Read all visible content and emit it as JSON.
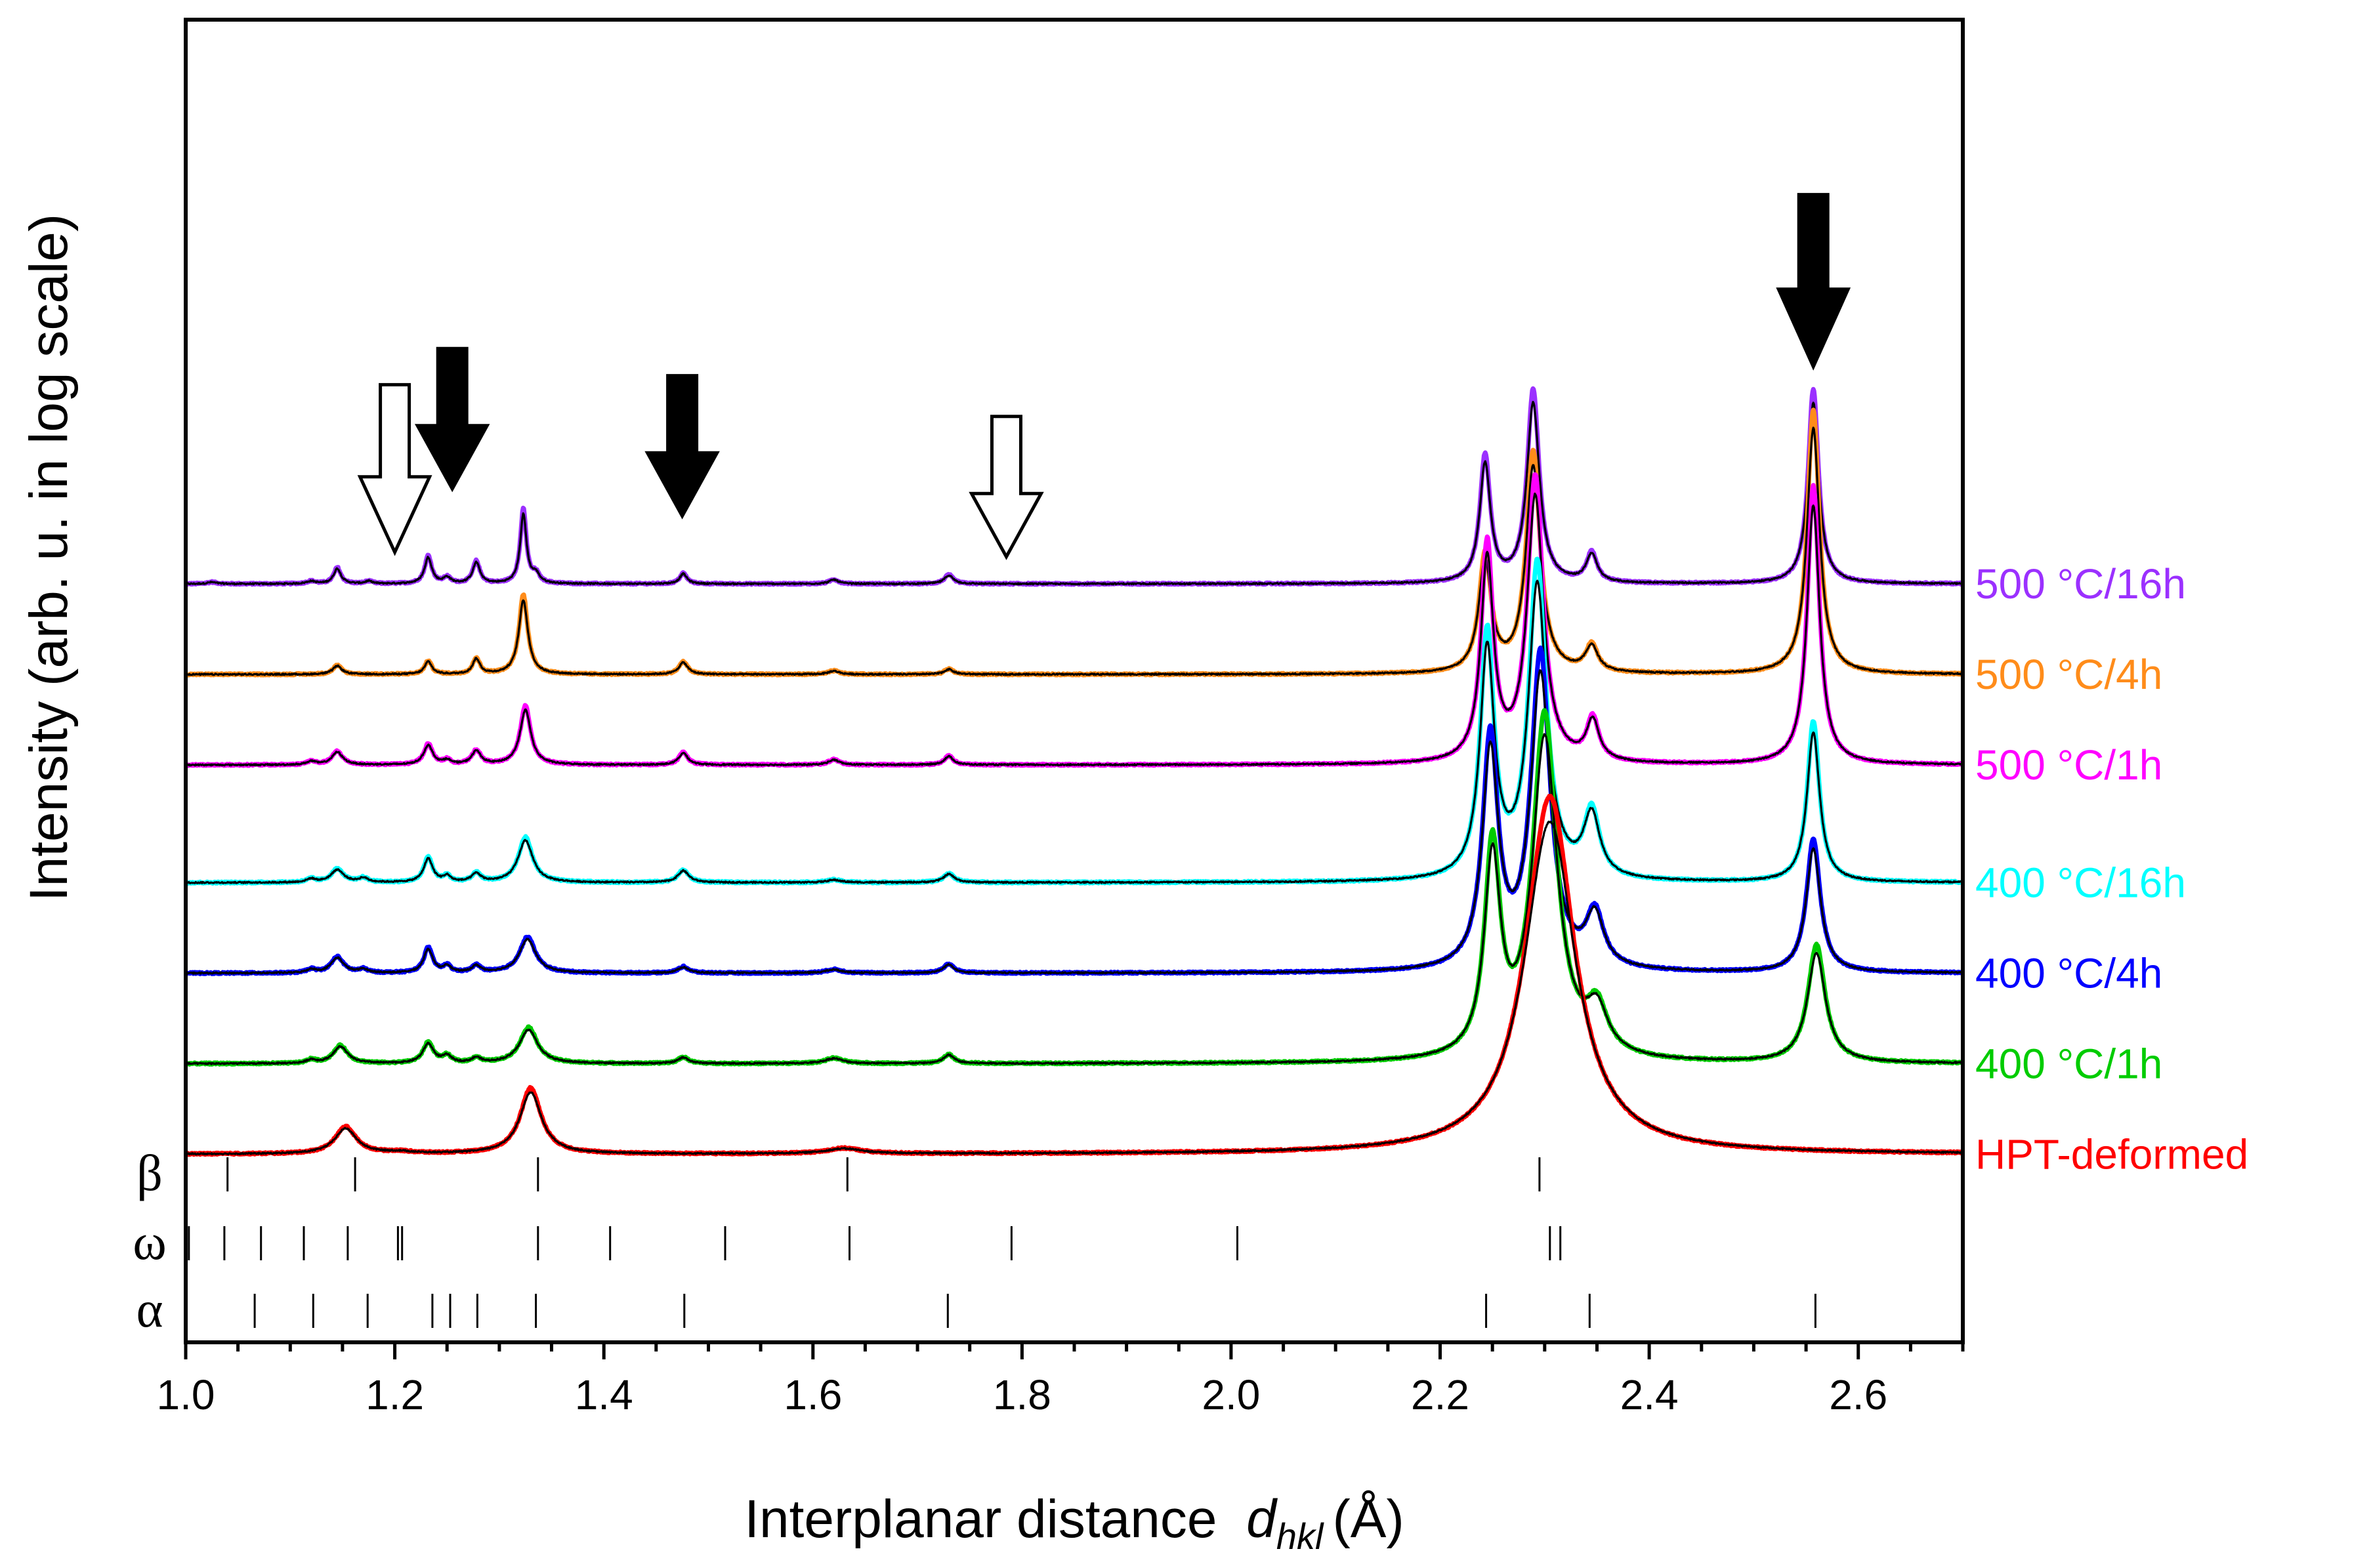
{
  "chart_data": {
    "type": "line",
    "title": "",
    "xlabel": "Interplanar distance",
    "xlabel_symbol": "d",
    "xlabel_subscript": "hkl",
    "xlabel_unit": "(Å)",
    "ylabel": "Intensity (arb. u. in log scale)",
    "xlim": [
      1.0,
      2.7
    ],
    "xticks": [
      "1.0",
      "1.2",
      "1.4",
      "1.6",
      "1.8",
      "2.0",
      "2.2",
      "2.4",
      "2.6"
    ],
    "xtick_values": [
      1.0,
      1.2,
      1.4,
      1.6,
      1.8,
      2.0,
      2.2,
      2.4,
      2.6
    ],
    "grid": false,
    "legend": "right-side labels next to each trace",
    "series": [
      {
        "name": "500 °C/16h",
        "color": "#9B30FF",
        "baseline": 6.0,
        "peaks": [
          [
            1.025,
            0.02,
            0.005
          ],
          [
            1.12,
            0.03,
            0.005
          ],
          [
            1.145,
            0.18,
            0.004
          ],
          [
            1.175,
            0.03,
            0.004
          ],
          [
            1.232,
            0.31,
            0.004
          ],
          [
            1.25,
            0.07,
            0.004
          ],
          [
            1.278,
            0.25,
            0.004
          ],
          [
            1.323,
            0.82,
            0.0035
          ],
          [
            1.335,
            0.1,
            0.004
          ],
          [
            1.476,
            0.12,
            0.004
          ],
          [
            1.62,
            0.05,
            0.005
          ],
          [
            1.73,
            0.1,
            0.005
          ],
          [
            2.243,
            1.4,
            0.006
          ],
          [
            2.289,
            2.13,
            0.007
          ],
          [
            2.345,
            0.33,
            0.006
          ],
          [
            2.557,
            2.15,
            0.006
          ]
        ]
      },
      {
        "name": "500 °C/4h",
        "color": "#FF8C1A",
        "baseline": 5.0,
        "peaks": [
          [
            1.145,
            0.1,
            0.005
          ],
          [
            1.232,
            0.15,
            0.004
          ],
          [
            1.278,
            0.18,
            0.004
          ],
          [
            1.323,
            0.88,
            0.005
          ],
          [
            1.476,
            0.14,
            0.005
          ],
          [
            1.62,
            0.04,
            0.006
          ],
          [
            1.73,
            0.06,
            0.005
          ],
          [
            2.243,
            1.3,
            0.007
          ],
          [
            2.289,
            2.45,
            0.008
          ],
          [
            2.345,
            0.3,
            0.007
          ],
          [
            2.557,
            2.92,
            0.007
          ]
        ]
      },
      {
        "name": "500 °C/1h",
        "color": "#FF00FF",
        "baseline": 4.0,
        "peaks": [
          [
            1.12,
            0.04,
            0.005
          ],
          [
            1.145,
            0.15,
            0.006
          ],
          [
            1.232,
            0.23,
            0.005
          ],
          [
            1.25,
            0.05,
            0.004
          ],
          [
            1.278,
            0.16,
            0.005
          ],
          [
            1.325,
            0.65,
            0.006
          ],
          [
            1.476,
            0.14,
            0.005
          ],
          [
            1.62,
            0.06,
            0.006
          ],
          [
            1.73,
            0.1,
            0.005
          ],
          [
            2.245,
            2.4,
            0.007
          ],
          [
            2.291,
            3.15,
            0.009
          ],
          [
            2.346,
            0.47,
            0.007
          ],
          [
            2.557,
            3.08,
            0.007
          ]
        ]
      },
      {
        "name": "400 °C/16h",
        "color": "#00FFFF",
        "baseline": 2.7,
        "peaks": [
          [
            1.12,
            0.04,
            0.005
          ],
          [
            1.145,
            0.15,
            0.007
          ],
          [
            1.17,
            0.05,
            0.005
          ],
          [
            1.232,
            0.28,
            0.005
          ],
          [
            1.25,
            0.07,
            0.004
          ],
          [
            1.278,
            0.1,
            0.005
          ],
          [
            1.325,
            0.5,
            0.008
          ],
          [
            1.476,
            0.14,
            0.006
          ],
          [
            1.62,
            0.03,
            0.008
          ],
          [
            1.73,
            0.1,
            0.006
          ],
          [
            2.245,
            2.7,
            0.008
          ],
          [
            2.293,
            3.48,
            0.01
          ],
          [
            2.345,
            0.73,
            0.009
          ],
          [
            2.557,
            1.78,
            0.007
          ]
        ]
      },
      {
        "name": "400 °C/4h",
        "color": "#0000FF",
        "baseline": 1.7,
        "peaks": [
          [
            1.12,
            0.04,
            0.005
          ],
          [
            1.145,
            0.18,
            0.007
          ],
          [
            1.17,
            0.04,
            0.005
          ],
          [
            1.232,
            0.28,
            0.005
          ],
          [
            1.25,
            0.08,
            0.004
          ],
          [
            1.278,
            0.08,
            0.005
          ],
          [
            1.327,
            0.4,
            0.009
          ],
          [
            1.476,
            0.07,
            0.006
          ],
          [
            1.62,
            0.04,
            0.009
          ],
          [
            1.73,
            0.1,
            0.006
          ],
          [
            2.248,
            2.55,
            0.009
          ],
          [
            2.296,
            3.48,
            0.011
          ],
          [
            2.348,
            0.6,
            0.01
          ],
          [
            2.557,
            1.47,
            0.008
          ]
        ]
      },
      {
        "name": "400 °C/1h",
        "color": "#00CC00",
        "baseline": 0.7,
        "peaks": [
          [
            1.12,
            0.04,
            0.005
          ],
          [
            1.148,
            0.2,
            0.008
          ],
          [
            1.232,
            0.23,
            0.006
          ],
          [
            1.25,
            0.08,
            0.005
          ],
          [
            1.278,
            0.06,
            0.005
          ],
          [
            1.328,
            0.4,
            0.01
          ],
          [
            1.476,
            0.07,
            0.006
          ],
          [
            1.62,
            0.06,
            0.01
          ],
          [
            1.73,
            0.1,
            0.006
          ],
          [
            2.25,
            2.3,
            0.009
          ],
          [
            2.3,
            3.8,
            0.014
          ],
          [
            2.35,
            0.5,
            0.012
          ],
          [
            2.56,
            1.3,
            0.01
          ]
        ]
      },
      {
        "name": "HPT-deformed",
        "color": "#FF0000",
        "baseline": -0.3,
        "peaks": [
          [
            1.153,
            0.3,
            0.012
          ],
          [
            1.205,
            0.02,
            0.015
          ],
          [
            1.33,
            0.73,
            0.012
          ],
          [
            1.63,
            0.06,
            0.02
          ],
          [
            2.305,
            3.95,
            0.028
          ]
        ]
      }
    ],
    "phase_markers": [
      {
        "name": "β",
        "positions": [
          1.04,
          1.162,
          1.337,
          1.633,
          2.295
        ]
      },
      {
        "name": "ω",
        "positions": [
          1.003,
          1.037,
          1.072,
          1.113,
          1.155,
          1.203,
          1.207,
          1.337,
          1.406,
          1.516,
          1.635,
          1.79,
          2.006,
          2.305,
          2.315
        ]
      },
      {
        "name": "α",
        "positions": [
          1.066,
          1.122,
          1.174,
          1.236,
          1.253,
          1.279,
          1.335,
          1.477,
          1.729,
          2.244,
          2.343,
          2.559
        ]
      }
    ],
    "annotations": [
      {
        "type": "open-arrow",
        "x": 1.2,
        "ymin": 6.35,
        "ymax": 8.2
      },
      {
        "type": "filled-arrow",
        "x": 1.255,
        "ymin": 7.05,
        "ymax": 8.6
      },
      {
        "type": "filled-arrow",
        "x": 1.475,
        "ymin": 6.75,
        "ymax": 8.3
      },
      {
        "type": "open-arrow",
        "x": 1.785,
        "ymin": 6.3,
        "ymax": 7.85
      },
      {
        "type": "filled-arrow",
        "x": 2.557,
        "ymin": 8.4,
        "ymax": 10.3
      }
    ]
  }
}
